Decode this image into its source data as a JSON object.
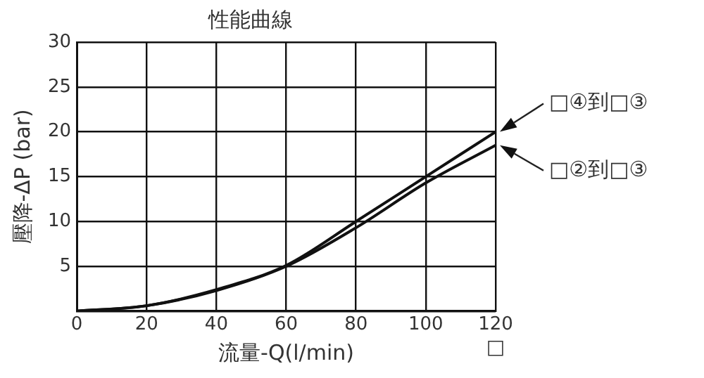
{
  "chart_data": {
    "type": "line",
    "title": "性能曲線",
    "xlabel": "流量-Q(l/min)",
    "ylabel": "壓降-ΔP (bar)",
    "x": [
      0,
      20,
      40,
      60,
      80,
      100,
      120
    ],
    "series": [
      {
        "name": "□④到□③",
        "color": "#111111",
        "values": [
          0,
          0.6,
          2.4,
          5.1,
          10,
          15,
          20
        ]
      },
      {
        "name": "□②到□③",
        "color": "#111111",
        "values": [
          0,
          0.6,
          2.3,
          5,
          9.3,
          14.3,
          18.5
        ]
      }
    ],
    "xlim": [
      0,
      120
    ],
    "xticks": [
      0,
      20,
      40,
      60,
      80,
      100,
      120
    ],
    "ylim": [
      0,
      30
    ],
    "yticks": [
      {
        "value": 0,
        "label": null
      },
      5,
      10,
      15,
      20,
      25,
      30
    ],
    "grid": true,
    "legend": false,
    "marker": "none",
    "line_style": "solid",
    "annotations": [
      "□"
    ]
  }
}
